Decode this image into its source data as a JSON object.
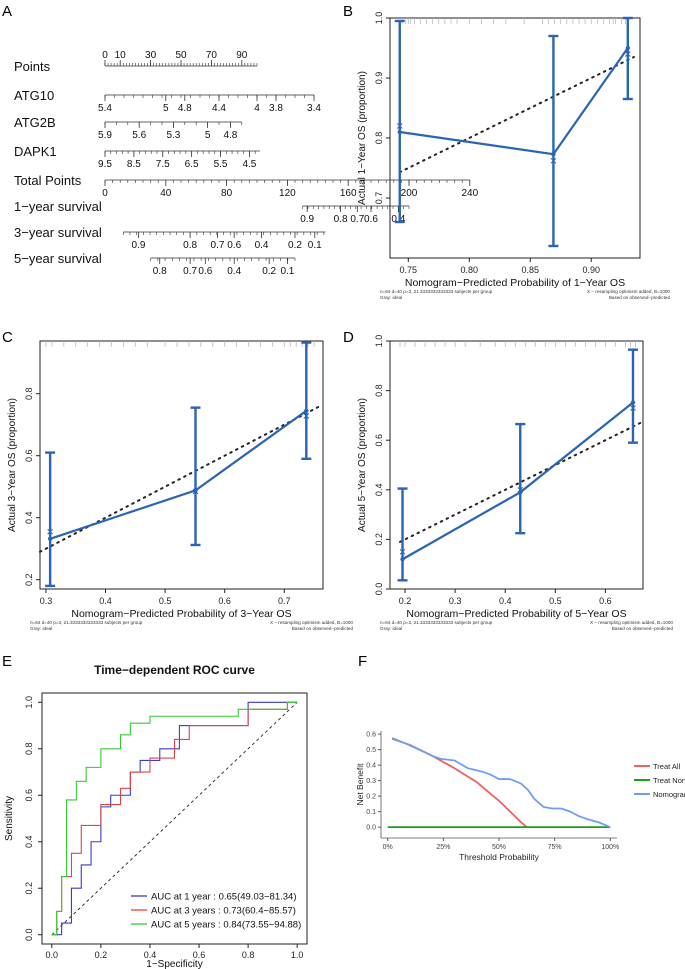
{
  "panel_labels": {
    "a": "A",
    "b": "B",
    "c": "C",
    "d": "D",
    "e": "E",
    "f": "F"
  },
  "chart_data": [
    {
      "panel": "A",
      "type": "nomogram",
      "rows": [
        {
          "label": "Points",
          "ticks": [
            "0",
            "10",
            "30",
            "50",
            "70",
            "90"
          ],
          "tick_pos": [
            0,
            10,
            30,
            50,
            70,
            90
          ],
          "domain": [
            0,
            100
          ],
          "minor_step": 2,
          "ticks_above": true
        },
        {
          "label": "ATG10",
          "ticks": [
            "5.4",
            "5",
            "4.8",
            "4.4",
            "4",
            "3.8",
            "3.4"
          ],
          "tick_pos": [
            0,
            40,
            52.5,
            75,
            100,
            112.5,
            137.5
          ],
          "domain": [
            0,
            137.5
          ],
          "minor_step": 6.25
        },
        {
          "label": "ATG2B",
          "ticks": [
            "5.9",
            "5.6",
            "5.3",
            "5",
            "4.8"
          ],
          "tick_pos": [
            0,
            22.5,
            45,
            67.5,
            82.5
          ],
          "domain": [
            0,
            90
          ],
          "minor_step": 7.5
        },
        {
          "label": "DAPK1",
          "ticks": [
            "9.5",
            "8.5",
            "7.5",
            "6.5",
            "5.5",
            "4.5"
          ],
          "tick_pos": [
            0,
            19,
            38,
            57,
            76,
            95
          ],
          "domain": [
            0,
            102
          ],
          "minor_step": 3.8
        },
        {
          "label": "Total Points",
          "ticks": [
            "0",
            "40",
            "80",
            "120",
            "160",
            "200",
            "240"
          ],
          "tick_pos": [
            0,
            40,
            80,
            120,
            160,
            200,
            240
          ],
          "domain": [
            0,
            240
          ],
          "minor_step": 5
        },
        {
          "label": "1−year survival",
          "ticks": [
            "0.9",
            "0.8",
            "0.7",
            "0.6",
            "0.4"
          ],
          "tick_pos": [
            133,
            155,
            166,
            175,
            193
          ],
          "domain": [
            130,
            200
          ],
          "minor_step": 3.5
        },
        {
          "label": "3−year survival",
          "ticks": [
            "0.9",
            "0.8",
            "0.7",
            "0.6",
            "0.4",
            "0.2",
            "0.1"
          ],
          "tick_pos": [
            22,
            56,
            74,
            85,
            103,
            125,
            138
          ],
          "domain": [
            12,
            145
          ],
          "minor_step": 4.4
        },
        {
          "label": "5−year survival",
          "ticks": [
            "0.8",
            "0.7",
            "0.6",
            "0.4",
            "0.2",
            "0.1"
          ],
          "tick_pos": [
            36,
            56,
            66,
            85,
            108,
            120
          ],
          "domain": [
            30,
            125
          ],
          "minor_step": 4.75
        }
      ]
    },
    {
      "panel": "B",
      "type": "calibration",
      "xlabel": "Nomogram−Predicted Probability of 1−Year OS",
      "ylabel": "Actual 1−Year OS (proportion)",
      "xlim": [
        0.735,
        0.94
      ],
      "ylim": [
        0.6,
        1.0
      ],
      "xticks": [
        0.75,
        0.8,
        0.85,
        0.9
      ],
      "xtick_labels": [
        "0.75",
        "0.80",
        "0.85",
        "0.90"
      ],
      "yticks": [
        0.7,
        0.8,
        0.9,
        1.0
      ],
      "ytick_labels": [
        "0.7",
        "0.8",
        "0.9",
        "1.0"
      ],
      "observed": {
        "x": [
          0.743,
          0.869,
          0.93
        ],
        "y": [
          0.81,
          0.773,
          0.95
        ],
        "lo": [
          0.66,
          0.62,
          0.865
        ],
        "hi": [
          0.995,
          0.97,
          1.0
        ]
      },
      "corrected_x": [
        {
          "x": 0.743,
          "y": 0.82
        },
        {
          "x": 0.869,
          "y": 0.762
        },
        {
          "x": 0.93,
          "y": 0.94
        }
      ],
      "ideal_dotted": {
        "x": [
          0.743,
          0.935
        ],
        "y": [
          0.743,
          0.935
        ]
      },
      "rug": [
        0.745,
        0.748,
        0.75,
        0.752,
        0.755,
        0.76,
        0.765,
        0.77,
        0.775,
        0.78,
        0.785,
        0.79,
        0.8,
        0.81,
        0.82,
        0.83,
        0.845,
        0.86,
        0.865,
        0.87,
        0.875,
        0.88,
        0.885,
        0.89,
        0.895,
        0.9,
        0.905,
        0.91,
        0.915,
        0.918,
        0.92,
        0.925,
        0.928,
        0.93
      ],
      "footnote_left1": "n=64 d=40 p=3, 21.3333333333333 subjects per group",
      "footnote_left2": "Gray: ideal",
      "footnote_right1": "X − resampling optimism added, B=1000",
      "footnote_right2": "Based on observed−predicted"
    },
    {
      "panel": "C",
      "type": "calibration",
      "xlabel": "Nomogram−Predicted Probability of 3−Year OS",
      "ylabel": "Actual 3−Year OS (proportion)",
      "xlim": [
        0.29,
        0.765
      ],
      "ylim": [
        0.17,
        0.97
      ],
      "xticks": [
        0.3,
        0.4,
        0.5,
        0.6,
        0.7
      ],
      "xtick_labels": [
        "0.3",
        "0.4",
        "0.5",
        "0.6",
        "0.7"
      ],
      "yticks": [
        0.2,
        0.4,
        0.6,
        0.8
      ],
      "ytick_labels": [
        "0.2",
        "0.4",
        "0.6",
        "0.8"
      ],
      "observed": {
        "x": [
          0.307,
          0.551,
          0.737
        ],
        "y": [
          0.332,
          0.488,
          0.745
        ],
        "lo": [
          0.18,
          0.312,
          0.59
        ],
        "hi": [
          0.61,
          0.755,
          0.965
        ]
      },
      "corrected_x": [
        {
          "x": 0.307,
          "y": 0.355
        },
        {
          "x": 0.551,
          "y": 0.485
        },
        {
          "x": 0.737,
          "y": 0.728
        }
      ],
      "ideal_dotted": {
        "x": [
          0.29,
          0.76
        ],
        "y": [
          0.29,
          0.76
        ]
      },
      "rug": [
        0.3,
        0.31,
        0.33,
        0.35,
        0.37,
        0.39,
        0.41,
        0.43,
        0.45,
        0.47,
        0.5,
        0.52,
        0.54,
        0.56,
        0.58,
        0.6,
        0.62,
        0.64,
        0.66,
        0.68,
        0.7,
        0.71,
        0.72,
        0.73,
        0.74,
        0.75
      ],
      "footnote_left1": "n=64 d=40 p=3, 21.3333333333333 subjects per group",
      "footnote_left2": "Gray: ideal",
      "footnote_right1": "X − resampling optimism added, B=1000",
      "footnote_right2": "Based on observed−predicted"
    },
    {
      "panel": "D",
      "type": "calibration",
      "xlabel": "Nomogram−Predicted Probability of 5−Year OS",
      "ylabel": "Actual 5−Year OS (proportion)",
      "xlim": [
        0.17,
        0.675
      ],
      "ylim": [
        0.0,
        1.0
      ],
      "xticks": [
        0.2,
        0.3,
        0.4,
        0.5,
        0.6
      ],
      "xtick_labels": [
        "0.2",
        "0.3",
        "0.4",
        "0.5",
        "0.6"
      ],
      "yticks": [
        0.0,
        0.2,
        0.4,
        0.6,
        0.8,
        1.0
      ],
      "ytick_labels": [
        "0.0",
        "0.2",
        "0.4",
        "0.6",
        "0.8",
        "1.0"
      ],
      "observed": {
        "x": [
          0.195,
          0.43,
          0.655
        ],
        "y": [
          0.12,
          0.39,
          0.752
        ],
        "lo": [
          0.035,
          0.225,
          0.59
        ],
        "hi": [
          0.405,
          0.665,
          0.965
        ]
      },
      "corrected_x": [
        {
          "x": 0.195,
          "y": 0.15
        },
        {
          "x": 0.43,
          "y": 0.4
        },
        {
          "x": 0.655,
          "y": 0.73
        }
      ],
      "ideal_dotted": {
        "x": [
          0.19,
          0.67
        ],
        "y": [
          0.19,
          0.67
        ]
      },
      "rug": [
        0.19,
        0.2,
        0.22,
        0.24,
        0.26,
        0.28,
        0.3,
        0.32,
        0.35,
        0.38,
        0.4,
        0.42,
        0.44,
        0.46,
        0.48,
        0.5,
        0.52,
        0.54,
        0.56,
        0.58,
        0.6,
        0.62,
        0.64,
        0.65,
        0.66
      ],
      "footnote_left1": "n=64 d=40 p=3, 21.3333333333333 subjects per group",
      "footnote_left2": "Gray: ideal",
      "footnote_right1": "X − resampling optimism added, B=1000",
      "footnote_right2": "Based on observed−predicted"
    },
    {
      "panel": "E",
      "type": "line",
      "title": "Time−dependent ROC curve",
      "xlabel": "1−Specificity",
      "ylabel": "Sensitivity",
      "xlim": [
        -0.04,
        1.04
      ],
      "ylim": [
        -0.04,
        1.04
      ],
      "ticks": [
        0.0,
        0.2,
        0.4,
        0.6,
        0.8,
        1.0
      ],
      "tick_labels": [
        "0.0",
        "0.2",
        "0.4",
        "0.6",
        "0.8",
        "1.0"
      ],
      "series": [
        {
          "name": "AUC at 1 year : 0.65(49.03−81.34)",
          "color": "#3a3acc",
          "x": [
            0,
            0.04,
            0.04,
            0.08,
            0.08,
            0.12,
            0.12,
            0.16,
            0.16,
            0.2,
            0.2,
            0.24,
            0.24,
            0.32,
            0.32,
            0.36,
            0.36,
            0.44,
            0.44,
            0.52,
            0.52,
            0.56,
            0.56,
            0.8,
            0.8,
            0.88,
            0.88,
            1.0
          ],
          "y": [
            0,
            0,
            0.05,
            0.05,
            0.2,
            0.2,
            0.3,
            0.3,
            0.4,
            0.4,
            0.55,
            0.55,
            0.6,
            0.6,
            0.7,
            0.7,
            0.75,
            0.75,
            0.8,
            0.8,
            0.9,
            0.9,
            0.9,
            0.9,
            1.0,
            1.0,
            1.0,
            1.0
          ]
        },
        {
          "name": "AUC at 3 years : 0.73(60.4−85.57)",
          "color": "#e04545",
          "x": [
            0,
            0.02,
            0.02,
            0.04,
            0.04,
            0.08,
            0.08,
            0.12,
            0.12,
            0.16,
            0.16,
            0.2,
            0.2,
            0.28,
            0.28,
            0.32,
            0.32,
            0.4,
            0.4,
            0.5,
            0.5,
            0.56,
            0.56,
            0.6,
            0.6,
            0.8,
            0.8,
            0.96,
            0.96,
            1.0
          ],
          "y": [
            0,
            0,
            0.1,
            0.1,
            0.25,
            0.25,
            0.35,
            0.35,
            0.47,
            0.47,
            0.47,
            0.47,
            0.56,
            0.56,
            0.63,
            0.63,
            0.7,
            0.7,
            0.76,
            0.76,
            0.84,
            0.84,
            0.9,
            0.9,
            0.9,
            0.9,
            0.97,
            0.97,
            1.0,
            1.0
          ]
        },
        {
          "name": "AUC at 5 years : 0.84(73.55−94.88)",
          "color": "#33cc33",
          "x": [
            0,
            0.02,
            0.02,
            0.04,
            0.04,
            0.06,
            0.06,
            0.1,
            0.1,
            0.14,
            0.14,
            0.2,
            0.2,
            0.28,
            0.28,
            0.32,
            0.32,
            0.4,
            0.4,
            0.76,
            0.76,
            0.96,
            0.96,
            1.0
          ],
          "y": [
            0,
            0,
            0.1,
            0.1,
            0.25,
            0.25,
            0.58,
            0.58,
            0.66,
            0.66,
            0.72,
            0.72,
            0.8,
            0.8,
            0.86,
            0.86,
            0.91,
            0.91,
            0.94,
            0.94,
            0.97,
            0.97,
            1.0,
            1.0
          ]
        }
      ],
      "diagonal": true,
      "legend_position": "bottom-right"
    },
    {
      "panel": "F",
      "type": "line",
      "title": "",
      "xlabel": "Threshold Probability",
      "ylabel": "Net Benefit",
      "xlim": [
        -0.03,
        1.03
      ],
      "ylim": [
        -0.07,
        0.62
      ],
      "xticks": [
        0,
        0.25,
        0.5,
        0.75,
        1.0
      ],
      "xtick_labels": [
        "0%",
        "25%",
        "50%",
        "75%",
        "100%"
      ],
      "yticks": [
        0.0,
        0.1,
        0.2,
        0.3,
        0.4,
        0.5,
        0.6
      ],
      "ytick_labels": [
        "0.0",
        "0.1",
        "0.2",
        "0.3",
        "0.4",
        "0.5",
        "0.6"
      ],
      "series": [
        {
          "name": "Treat All",
          "color": "#f06060",
          "x": [
            0.02,
            0.1,
            0.2,
            0.3,
            0.4,
            0.5,
            0.55,
            0.6,
            0.625
          ],
          "y": [
            0.57,
            0.53,
            0.46,
            0.38,
            0.29,
            0.17,
            0.1,
            0.03,
            0.0
          ]
        },
        {
          "name": "Treat None",
          "color": "#1aa11a",
          "x": [
            0,
            1.0
          ],
          "y": [
            0,
            0
          ]
        },
        {
          "name": "Nomogram",
          "color": "#6f9ff0",
          "x": [
            0.02,
            0.08,
            0.14,
            0.2,
            0.24,
            0.3,
            0.36,
            0.42,
            0.46,
            0.5,
            0.55,
            0.6,
            0.63,
            0.66,
            0.7,
            0.74,
            0.78,
            0.82,
            0.86,
            0.9,
            0.95,
            1.0
          ],
          "y": [
            0.575,
            0.54,
            0.5,
            0.46,
            0.44,
            0.43,
            0.38,
            0.36,
            0.34,
            0.31,
            0.31,
            0.28,
            0.24,
            0.18,
            0.13,
            0.12,
            0.12,
            0.1,
            0.07,
            0.05,
            0.03,
            0.0
          ]
        }
      ],
      "legend_position": "right"
    }
  ]
}
